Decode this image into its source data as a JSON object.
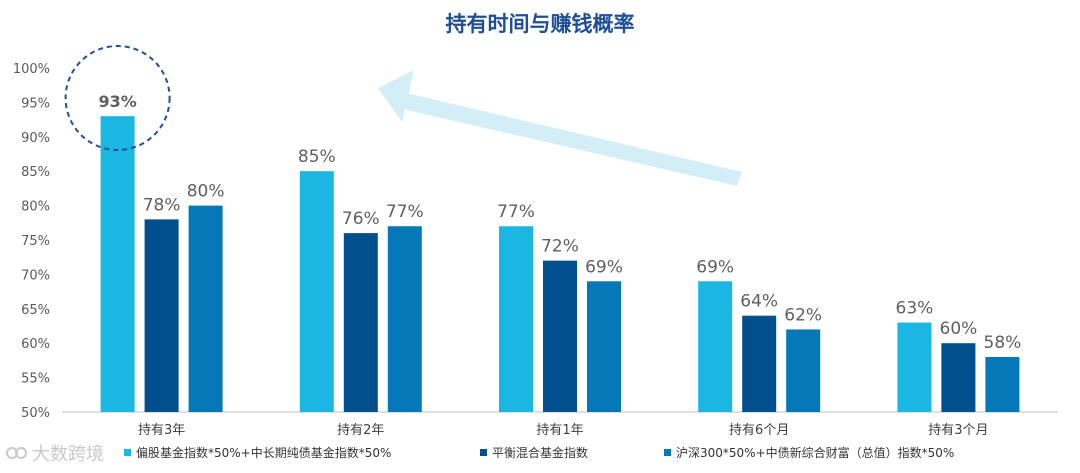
{
  "chart_data": {
    "type": "bar",
    "title": "持有时间与赚钱概率",
    "categories": [
      "持有3年",
      "持有2年",
      "持有1年",
      "持有6个月",
      "持有3个月"
    ],
    "series": [
      {
        "name": "偏股基金指数*50%+中长期纯债基金指数*50%",
        "color": "#1cb6e3",
        "values": [
          93,
          85,
          77,
          69,
          63
        ],
        "labels": [
          "93%",
          "85%",
          "77%",
          "69%",
          "63%"
        ]
      },
      {
        "name": "平衡混合基金指数",
        "color": "#014f8c",
        "values": [
          78,
          76,
          72,
          64,
          60
        ],
        "labels": [
          "78%",
          "76%",
          "72%",
          "64%",
          "60%"
        ]
      },
      {
        "name": "沪深300*50%+中债新综合财富（总值）指数*50%",
        "color": "#0578b7",
        "values": [
          80,
          77,
          69,
          62,
          58
        ],
        "labels": [
          "80%",
          "77%",
          "69%",
          "62%",
          "58%"
        ]
      }
    ],
    "ylim": [
      50,
      100
    ],
    "yticks": [
      "50%",
      "55%",
      "60%",
      "65%",
      "70%",
      "75%",
      "80%",
      "85%",
      "90%",
      "95%",
      "100%"
    ],
    "ytick_values": [
      50,
      55,
      60,
      65,
      70,
      75,
      80,
      85,
      90,
      95,
      100
    ],
    "grid": false,
    "legend_position": "bottom",
    "annotations": {
      "highlight_circle": "93%",
      "arrow": "trend pointing up-left",
      "arrow_color": "#d4eef8",
      "circle_color": "#1f4e97"
    }
  },
  "watermark": {
    "text": "大数跨境"
  }
}
